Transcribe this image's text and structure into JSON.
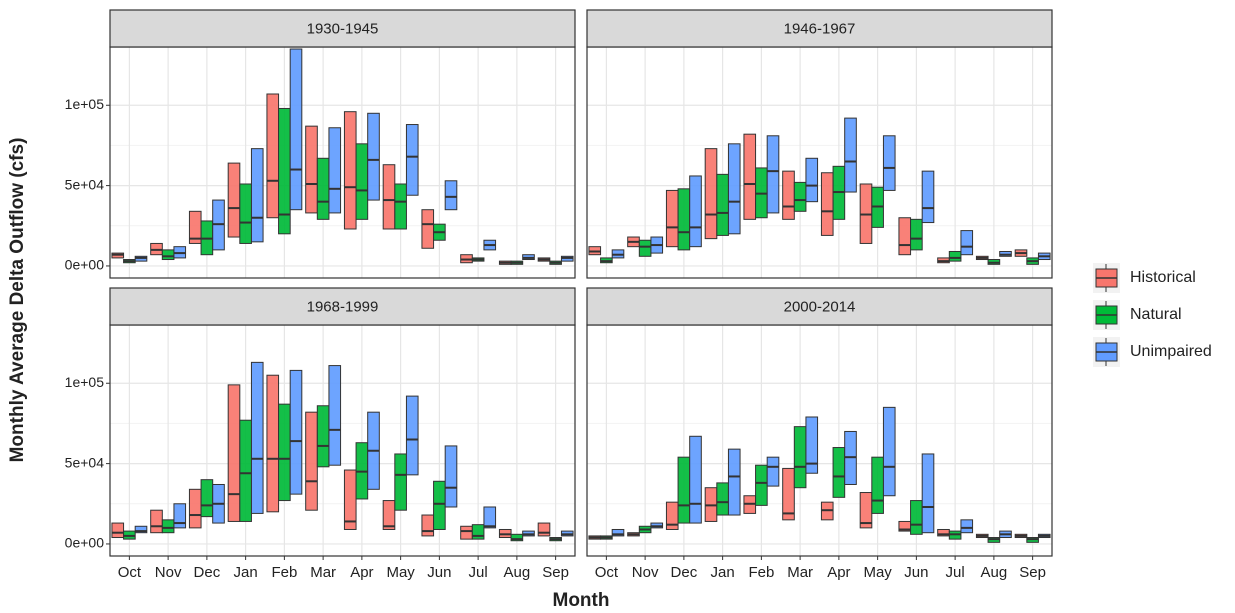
{
  "chart_data": {
    "type": "crossbar",
    "ylabel": "Monthly Average Delta Outflow (cfs)",
    "xlabel": "Month",
    "categories": [
      "Oct",
      "Nov",
      "Dec",
      "Jan",
      "Feb",
      "Mar",
      "Apr",
      "May",
      "Jun",
      "Jul",
      "Aug",
      "Sep"
    ],
    "ylim": [
      -7500,
      136250
    ],
    "yticks": [
      {
        "value": 0,
        "label": "0e+00"
      },
      {
        "value": 50000,
        "label": "5e+04"
      },
      {
        "value": 100000,
        "label": "1e+05"
      }
    ],
    "grid": true,
    "legend": "right",
    "series": [
      {
        "name": "Historical",
        "color": "#F8766D"
      },
      {
        "name": "Natural",
        "color": "#00BA38"
      },
      {
        "name": "Unimpaired",
        "color": "#619CFF"
      }
    ],
    "panels": [
      {
        "title": "1930-1945",
        "series": [
          {
            "low": [
              5000,
              7000,
              14000,
              18000,
              30000,
              33000,
              23000,
              23000,
              11000,
              2000,
              1000,
              3000
            ],
            "median": [
              7000,
              10000,
              17000,
              36000,
              53000,
              51000,
              49000,
              41000,
              26000,
              4000,
              2000,
              4000
            ],
            "high": [
              8000,
              14000,
              34000,
              64000,
              107000,
              87000,
              96000,
              63000,
              35000,
              7000,
              3000,
              5000
            ]
          },
          {
            "low": [
              2000,
              4000,
              7000,
              14000,
              20000,
              29000,
              29000,
              23000,
              16000,
              3000,
              1000,
              1000
            ],
            "median": [
              3000,
              6000,
              17000,
              27000,
              32000,
              40000,
              47000,
              40000,
              21000,
              4000,
              2000,
              2000
            ],
            "high": [
              4000,
              10000,
              28000,
              51000,
              98000,
              67000,
              76000,
              51000,
              26000,
              5000,
              3000,
              3000
            ]
          },
          {
            "low": [
              3000,
              5000,
              10000,
              15000,
              35000,
              33000,
              41000,
              44000,
              35000,
              10000,
              4000,
              3000
            ],
            "median": [
              5000,
              8000,
              26000,
              30000,
              60000,
              48000,
              66000,
              68000,
              43000,
              13000,
              5000,
              5000
            ],
            "high": [
              6000,
              12000,
              41000,
              73000,
              135000,
              86000,
              95000,
              88000,
              53000,
              16000,
              7000,
              6000
            ]
          }
        ]
      },
      {
        "title": "1946-1967",
        "series": [
          {
            "low": [
              7000,
              12000,
              12000,
              17000,
              29000,
              29000,
              19000,
              14000,
              7000,
              2000,
              4000,
              6000
            ],
            "median": [
              9000,
              15000,
              24000,
              32000,
              51000,
              37000,
              34000,
              32000,
              13000,
              3000,
              5000,
              8000
            ],
            "high": [
              12000,
              18000,
              47000,
              73000,
              82000,
              59000,
              58000,
              51000,
              30000,
              5000,
              6000,
              10000
            ]
          },
          {
            "low": [
              2000,
              6000,
              10000,
              19000,
              30000,
              34000,
              29000,
              24000,
              10000,
              3000,
              1000,
              1000
            ],
            "median": [
              3000,
              12000,
              21000,
              33000,
              45000,
              41000,
              46000,
              37000,
              17000,
              5000,
              2000,
              3000
            ],
            "high": [
              5000,
              16000,
              48000,
              57000,
              61000,
              52000,
              62000,
              49000,
              29000,
              9000,
              4000,
              5000
            ]
          },
          {
            "low": [
              5000,
              8000,
              12000,
              20000,
              33000,
              40000,
              46000,
              47000,
              27000,
              7000,
              6000,
              4000
            ],
            "median": [
              7000,
              13000,
              24000,
              40000,
              59000,
              50000,
              65000,
              61000,
              36000,
              12000,
              7000,
              6000
            ],
            "high": [
              10000,
              18000,
              56000,
              76000,
              81000,
              67000,
              92000,
              81000,
              59000,
              22000,
              9000,
              8000
            ]
          }
        ]
      },
      {
        "title": "1968-1999",
        "series": [
          {
            "low": [
              4000,
              7000,
              10000,
              14000,
              20000,
              21000,
              9000,
              9000,
              5000,
              3000,
              4000,
              5000
            ],
            "median": [
              7000,
              11000,
              18000,
              31000,
              53000,
              39000,
              14000,
              11000,
              8000,
              8000,
              6000,
              7000
            ],
            "high": [
              13000,
              21000,
              34000,
              99000,
              105000,
              82000,
              46000,
              27000,
              18000,
              11000,
              9000,
              13000
            ]
          },
          {
            "low": [
              3000,
              7000,
              17000,
              14000,
              27000,
              48000,
              28000,
              21000,
              9000,
              3000,
              2000,
              2000
            ],
            "median": [
              5000,
              10000,
              24000,
              44000,
              53000,
              61000,
              45000,
              43000,
              25000,
              5000,
              3000,
              3000
            ],
            "high": [
              8000,
              15000,
              40000,
              77000,
              87000,
              86000,
              63000,
              56000,
              39000,
              12000,
              6000,
              4000
            ]
          },
          {
            "low": [
              7000,
              10000,
              13000,
              19000,
              31000,
              49000,
              34000,
              43000,
              23000,
              10000,
              5000,
              5000
            ],
            "median": [
              8000,
              13000,
              25000,
              53000,
              64000,
              71000,
              58000,
              65000,
              35000,
              11000,
              6000,
              6000
            ],
            "high": [
              11000,
              25000,
              37000,
              113000,
              108000,
              111000,
              82000,
              92000,
              61000,
              23000,
              8000,
              8000
            ]
          }
        ]
      },
      {
        "title": "2000-2014",
        "series": [
          {
            "low": [
              3000,
              5000,
              9000,
              14000,
              19000,
              15000,
              15000,
              10000,
              8000,
              5000,
              4000,
              4000
            ],
            "median": [
              4000,
              6000,
              12000,
              24000,
              25000,
              19000,
              21000,
              13000,
              9000,
              6000,
              5000,
              5000
            ],
            "high": [
              5000,
              7000,
              26000,
              35000,
              30000,
              47000,
              26000,
              32000,
              14000,
              9000,
              6000,
              6000
            ]
          },
          {
            "low": [
              3000,
              7000,
              13000,
              18000,
              24000,
              35000,
              29000,
              19000,
              6000,
              3000,
              1000,
              1000
            ],
            "median": [
              4000,
              9000,
              24000,
              26000,
              38000,
              48000,
              42000,
              27000,
              12000,
              6000,
              3000,
              3000
            ],
            "high": [
              5000,
              11000,
              54000,
              38000,
              49000,
              73000,
              60000,
              54000,
              27000,
              8000,
              4000,
              4000
            ]
          },
          {
            "low": [
              5000,
              10000,
              13000,
              18000,
              36000,
              44000,
              37000,
              30000,
              7000,
              7000,
              4000,
              4000
            ],
            "median": [
              6000,
              11000,
              25000,
              42000,
              48000,
              50000,
              54000,
              48000,
              23000,
              10000,
              6000,
              5000
            ],
            "high": [
              9000,
              13000,
              67000,
              59000,
              54000,
              79000,
              70000,
              85000,
              56000,
              15000,
              8000,
              6000
            ]
          }
        ]
      }
    ]
  }
}
